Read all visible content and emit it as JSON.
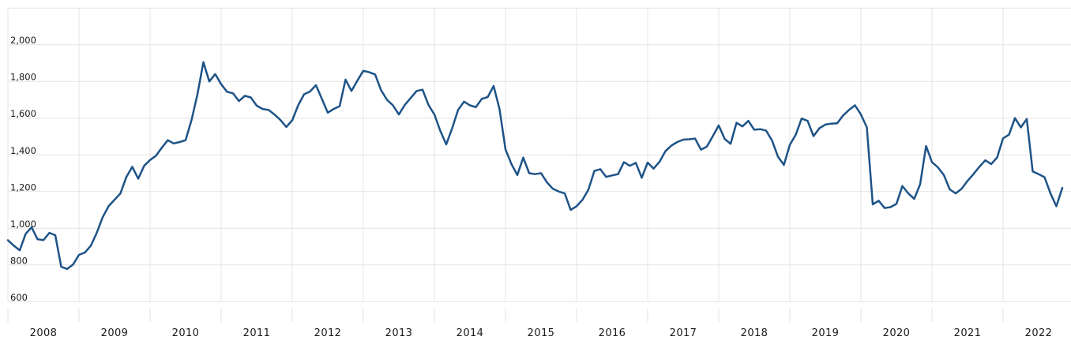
{
  "chart": {
    "title": "",
    "colors": {
      "line": "#1e5387",
      "grid": "#e4e4e4",
      "tick": "#e0e0e0",
      "label": "#1a1a1a",
      "background": "#ffffff"
    },
    "y_axis": {
      "tick_labels": [
        "600",
        "800",
        "1,000",
        "1,200",
        "1,400",
        "1,600",
        "1,800",
        "2,000"
      ],
      "tick_values": [
        600,
        800,
        1000,
        1200,
        1400,
        1600,
        1800,
        2000
      ],
      "grid_values": [
        600,
        800,
        1000,
        1200,
        1400,
        1600,
        1800,
        2000,
        2200
      ]
    },
    "x_axis": {
      "tick_labels": [
        "2008",
        "2009",
        "2010",
        "2011",
        "2012",
        "2013",
        "2014",
        "2015",
        "2016",
        "2017",
        "2018",
        "2019",
        "2020",
        "2021",
        "2022"
      ]
    }
  },
  "chart_data": {
    "type": "line",
    "title": "",
    "xlabel": "",
    "ylabel": "",
    "frequency": "monthly",
    "x_start": "2008-01",
    "x_end": "2022-11",
    "start_year": 2008,
    "ylim": [
      550,
      2200
    ],
    "grid": true,
    "legend": false,
    "series": [
      {
        "name": "value",
        "values": [
          935,
          905,
          880,
          970,
          1005,
          940,
          935,
          975,
          962,
          790,
          778,
          802,
          855,
          868,
          905,
          975,
          1060,
          1120,
          1155,
          1190,
          1280,
          1335,
          1270,
          1340,
          1372,
          1395,
          1440,
          1480,
          1462,
          1470,
          1480,
          1590,
          1730,
          1905,
          1800,
          1840,
          1785,
          1744,
          1735,
          1693,
          1722,
          1713,
          1668,
          1650,
          1645,
          1620,
          1590,
          1552,
          1588,
          1670,
          1730,
          1745,
          1780,
          1705,
          1630,
          1650,
          1665,
          1810,
          1748,
          1805,
          1858,
          1850,
          1838,
          1752,
          1700,
          1670,
          1620,
          1672,
          1710,
          1748,
          1755,
          1672,
          1620,
          1530,
          1457,
          1545,
          1645,
          1690,
          1670,
          1660,
          1705,
          1715,
          1775,
          1648,
          1430,
          1350,
          1290,
          1385,
          1300,
          1295,
          1300,
          1250,
          1215,
          1200,
          1190,
          1100,
          1120,
          1155,
          1210,
          1312,
          1322,
          1280,
          1288,
          1295,
          1360,
          1340,
          1357,
          1275,
          1358,
          1325,
          1362,
          1420,
          1450,
          1470,
          1483,
          1485,
          1489,
          1428,
          1445,
          1502,
          1560,
          1487,
          1460,
          1575,
          1555,
          1585,
          1537,
          1540,
          1532,
          1478,
          1390,
          1345,
          1455,
          1510,
          1598,
          1585,
          1502,
          1545,
          1565,
          1570,
          1572,
          1615,
          1645,
          1670,
          1620,
          1550,
          1130,
          1150,
          1110,
          1115,
          1133,
          1230,
          1190,
          1160,
          1240,
          1448,
          1360,
          1332,
          1290,
          1212,
          1190,
          1215,
          1258,
          1295,
          1335,
          1370,
          1350,
          1386,
          1490,
          1510,
          1600,
          1550,
          1595,
          1310,
          1295,
          1278,
          1190,
          1120,
          1220
        ]
      }
    ]
  }
}
